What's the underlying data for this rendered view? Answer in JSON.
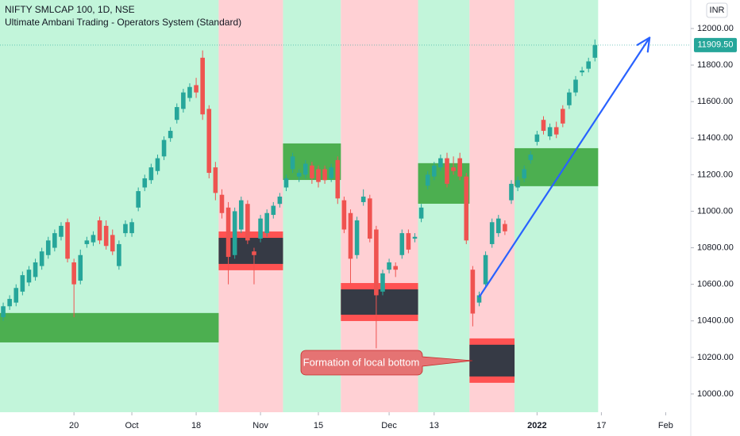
{
  "chart_data": {
    "type": "candlestick",
    "title": "NIFTY SMLCAP 100, 1D, NSE",
    "subtitle": "Ultimate Ambani Trading - Operators System (Standard)",
    "currency": "INR",
    "up_color": "#26a69a",
    "down_color": "#ef5350",
    "ohlc": [
      [
        10420,
        10500,
        10400,
        10480
      ],
      [
        10480,
        10540,
        10460,
        10520
      ],
      [
        10500,
        10600,
        10480,
        10580
      ],
      [
        10560,
        10670,
        10540,
        10650
      ],
      [
        10610,
        10700,
        10590,
        10680
      ],
      [
        10640,
        10740,
        10620,
        10720
      ],
      [
        10700,
        10800,
        10680,
        10780
      ],
      [
        10760,
        10860,
        10740,
        10840
      ],
      [
        10800,
        10900,
        10780,
        10880
      ],
      [
        10860,
        10940,
        10840,
        10920
      ],
      [
        10940,
        10960,
        10720,
        10740
      ],
      [
        10720,
        10740,
        10420,
        10600
      ],
      [
        10620,
        10790,
        10600,
        10760
      ],
      [
        10820,
        10860,
        10800,
        10840
      ],
      [
        10830,
        10890,
        10810,
        10870
      ],
      [
        10950,
        10970,
        10820,
        10840
      ],
      [
        10920,
        10950,
        10790,
        10810
      ],
      [
        10870,
        10900,
        10760,
        10780
      ],
      [
        10700,
        10840,
        10680,
        10820
      ],
      [
        10880,
        10950,
        10860,
        10930
      ],
      [
        10880,
        10960,
        10860,
        10940
      ],
      [
        11020,
        11130,
        11000,
        11110
      ],
      [
        11130,
        11200,
        11110,
        11180
      ],
      [
        11170,
        11260,
        11150,
        11240
      ],
      [
        11220,
        11310,
        11200,
        11290
      ],
      [
        11300,
        11410,
        11280,
        11390
      ],
      [
        11400,
        11460,
        11380,
        11440
      ],
      [
        11500,
        11590,
        11480,
        11570
      ],
      [
        11560,
        11670,
        11540,
        11650
      ],
      [
        11620,
        11700,
        11600,
        11680
      ],
      [
        11690,
        11730,
        11620,
        11650
      ],
      [
        11840,
        11880,
        11500,
        11530
      ],
      [
        11560,
        11580,
        11180,
        11210
      ],
      [
        11240,
        11270,
        11060,
        11100
      ],
      [
        11090,
        11120,
        10960,
        10990
      ],
      [
        11020,
        11050,
        10600,
        10750
      ],
      [
        10760,
        11020,
        10740,
        11000
      ],
      [
        10900,
        11080,
        10880,
        11060
      ],
      [
        11040,
        11060,
        10820,
        10840
      ],
      [
        10780,
        10800,
        10600,
        10760
      ],
      [
        10850,
        10980,
        10830,
        10960
      ],
      [
        10880,
        11010,
        10860,
        10990
      ],
      [
        10980,
        11050,
        10960,
        11030
      ],
      [
        11040,
        11100,
        11020,
        11080
      ],
      [
        11130,
        11200,
        11110,
        11180
      ],
      [
        11230,
        11320,
        11210,
        11300
      ],
      [
        11190,
        11230,
        11160,
        11210
      ],
      [
        11200,
        11280,
        11180,
        11260
      ],
      [
        11250,
        11270,
        11150,
        11180
      ],
      [
        11230,
        11250,
        11130,
        11160
      ],
      [
        11230,
        11250,
        11150,
        11170
      ],
      [
        11180,
        11260,
        11160,
        11240
      ],
      [
        11280,
        11300,
        11040,
        11070
      ],
      [
        11060,
        11080,
        10880,
        10900
      ],
      [
        10990,
        11010,
        10600,
        10740
      ],
      [
        10760,
        10970,
        10740,
        10950
      ],
      [
        11050,
        11120,
        11030,
        11080
      ],
      [
        11070,
        11090,
        10830,
        10850
      ],
      [
        10900,
        10920,
        10250,
        10540
      ],
      [
        10560,
        10680,
        10540,
        10660
      ],
      [
        10680,
        10740,
        10660,
        10720
      ],
      [
        10700,
        10720,
        10640,
        10680
      ],
      [
        10760,
        10900,
        10740,
        10880
      ],
      [
        10880,
        10900,
        10770,
        10790
      ],
      [
        10850,
        10880,
        10830,
        10860
      ],
      [
        10960,
        11040,
        10940,
        11020
      ],
      [
        11140,
        11220,
        11120,
        11200
      ],
      [
        11190,
        11270,
        11170,
        11250
      ],
      [
        11240,
        11310,
        11220,
        11290
      ],
      [
        11290,
        11320,
        11130,
        11150
      ],
      [
        11240,
        11300,
        11200,
        11220
      ],
      [
        11290,
        11320,
        11170,
        11190
      ],
      [
        11190,
        11210,
        10820,
        10840
      ],
      [
        10680,
        10700,
        10370,
        10440
      ],
      [
        10500,
        10560,
        10480,
        10540
      ],
      [
        10600,
        10780,
        10580,
        10760
      ],
      [
        10820,
        10960,
        10800,
        10940
      ],
      [
        10880,
        10980,
        10860,
        10960
      ],
      [
        10930,
        10950,
        10870,
        10890
      ],
      [
        11060,
        11170,
        11040,
        11150
      ],
      [
        11130,
        11190,
        11110,
        11170
      ],
      [
        11180,
        11250,
        11160,
        11230
      ],
      [
        11280,
        11330,
        11260,
        11310
      ],
      [
        11380,
        11440,
        11360,
        11420
      ],
      [
        11500,
        11520,
        11420,
        11440
      ],
      [
        11410,
        11480,
        11390,
        11460
      ],
      [
        11460,
        11490,
        11400,
        11420
      ],
      [
        11560,
        11580,
        11460,
        11480
      ],
      [
        11580,
        11670,
        11560,
        11650
      ],
      [
        11650,
        11740,
        11630,
        11720
      ],
      [
        11760,
        11790,
        11740,
        11770
      ],
      [
        11780,
        11840,
        11760,
        11820
      ],
      [
        11840,
        11940,
        11820,
        11909.5
      ]
    ],
    "regimes": [
      {
        "from": 0,
        "to": 33,
        "color": "#c2f5da"
      },
      {
        "from": 34,
        "to": 43,
        "color": "#ffd0d4"
      },
      {
        "from": 44,
        "to": 52,
        "color": "#c2f5da"
      },
      {
        "from": 53,
        "to": 64,
        "color": "#ffd0d4"
      },
      {
        "from": 65,
        "to": 72,
        "color": "#c2f5da"
      },
      {
        "from": 73,
        "to": 79,
        "color": "#ffd0d4"
      },
      {
        "from": 80,
        "to": 92,
        "color": "#c2f5da"
      }
    ],
    "zones": [
      {
        "kind": "demand",
        "from": 0,
        "to": 33,
        "top": 10443,
        "bottom": 10282
      },
      {
        "kind": "supply",
        "from": 34,
        "to": 43,
        "top": 10889,
        "bottom": 10677
      },
      {
        "kind": "demand",
        "from": 44,
        "to": 52,
        "top": 11371,
        "bottom": 11171
      },
      {
        "kind": "supply",
        "from": 53,
        "to": 64,
        "top": 10607,
        "bottom": 10399
      },
      {
        "kind": "demand",
        "from": 65,
        "to": 72,
        "top": 11263,
        "bottom": 11041
      },
      {
        "kind": "supply",
        "from": 73,
        "to": 79,
        "top": 10304,
        "bottom": 10061
      },
      {
        "kind": "demand",
        "from": 80,
        "to": 92,
        "top": 11345,
        "bottom": 11137
      }
    ],
    "arrow": {
      "from": [
        74,
        10530
      ],
      "to": [
        100.5,
        11950
      ],
      "color": "#2962ff"
    },
    "annotation": "Formation of local bottom",
    "last_price": {
      "value": 11909.5,
      "label": "11909.50"
    },
    "xlim": [
      -0.5,
      106.9
    ],
    "xticks": [
      {
        "value": 11,
        "label": "20"
      },
      {
        "value": 20,
        "label": "Oct"
      },
      {
        "value": 30,
        "label": "18"
      },
      {
        "value": 40,
        "label": "Nov"
      },
      {
        "value": 49,
        "label": "15"
      },
      {
        "value": 60,
        "label": "Dec"
      },
      {
        "value": 67,
        "label": "13"
      },
      {
        "value": 83,
        "label": "2022"
      },
      {
        "value": 93,
        "label": "17"
      },
      {
        "value": 103,
        "label": "Feb"
      }
    ],
    "ylim": [
      9900,
      12156
    ],
    "yticks": [
      {
        "value": 10000,
        "label": "10000.00"
      },
      {
        "value": 10200,
        "label": "10200.00"
      },
      {
        "value": 10400,
        "label": "10400.00"
      },
      {
        "value": 10600,
        "label": "10600.00"
      },
      {
        "value": 10800,
        "label": "10800.00"
      },
      {
        "value": 11000,
        "label": "11000.00"
      },
      {
        "value": 11200,
        "label": "11200.00"
      },
      {
        "value": 11400,
        "label": "11400.00"
      },
      {
        "value": 11600,
        "label": "11600.00"
      },
      {
        "value": 11800,
        "label": "11800.00"
      },
      {
        "value": 12000,
        "label": "12000.00"
      }
    ]
  }
}
